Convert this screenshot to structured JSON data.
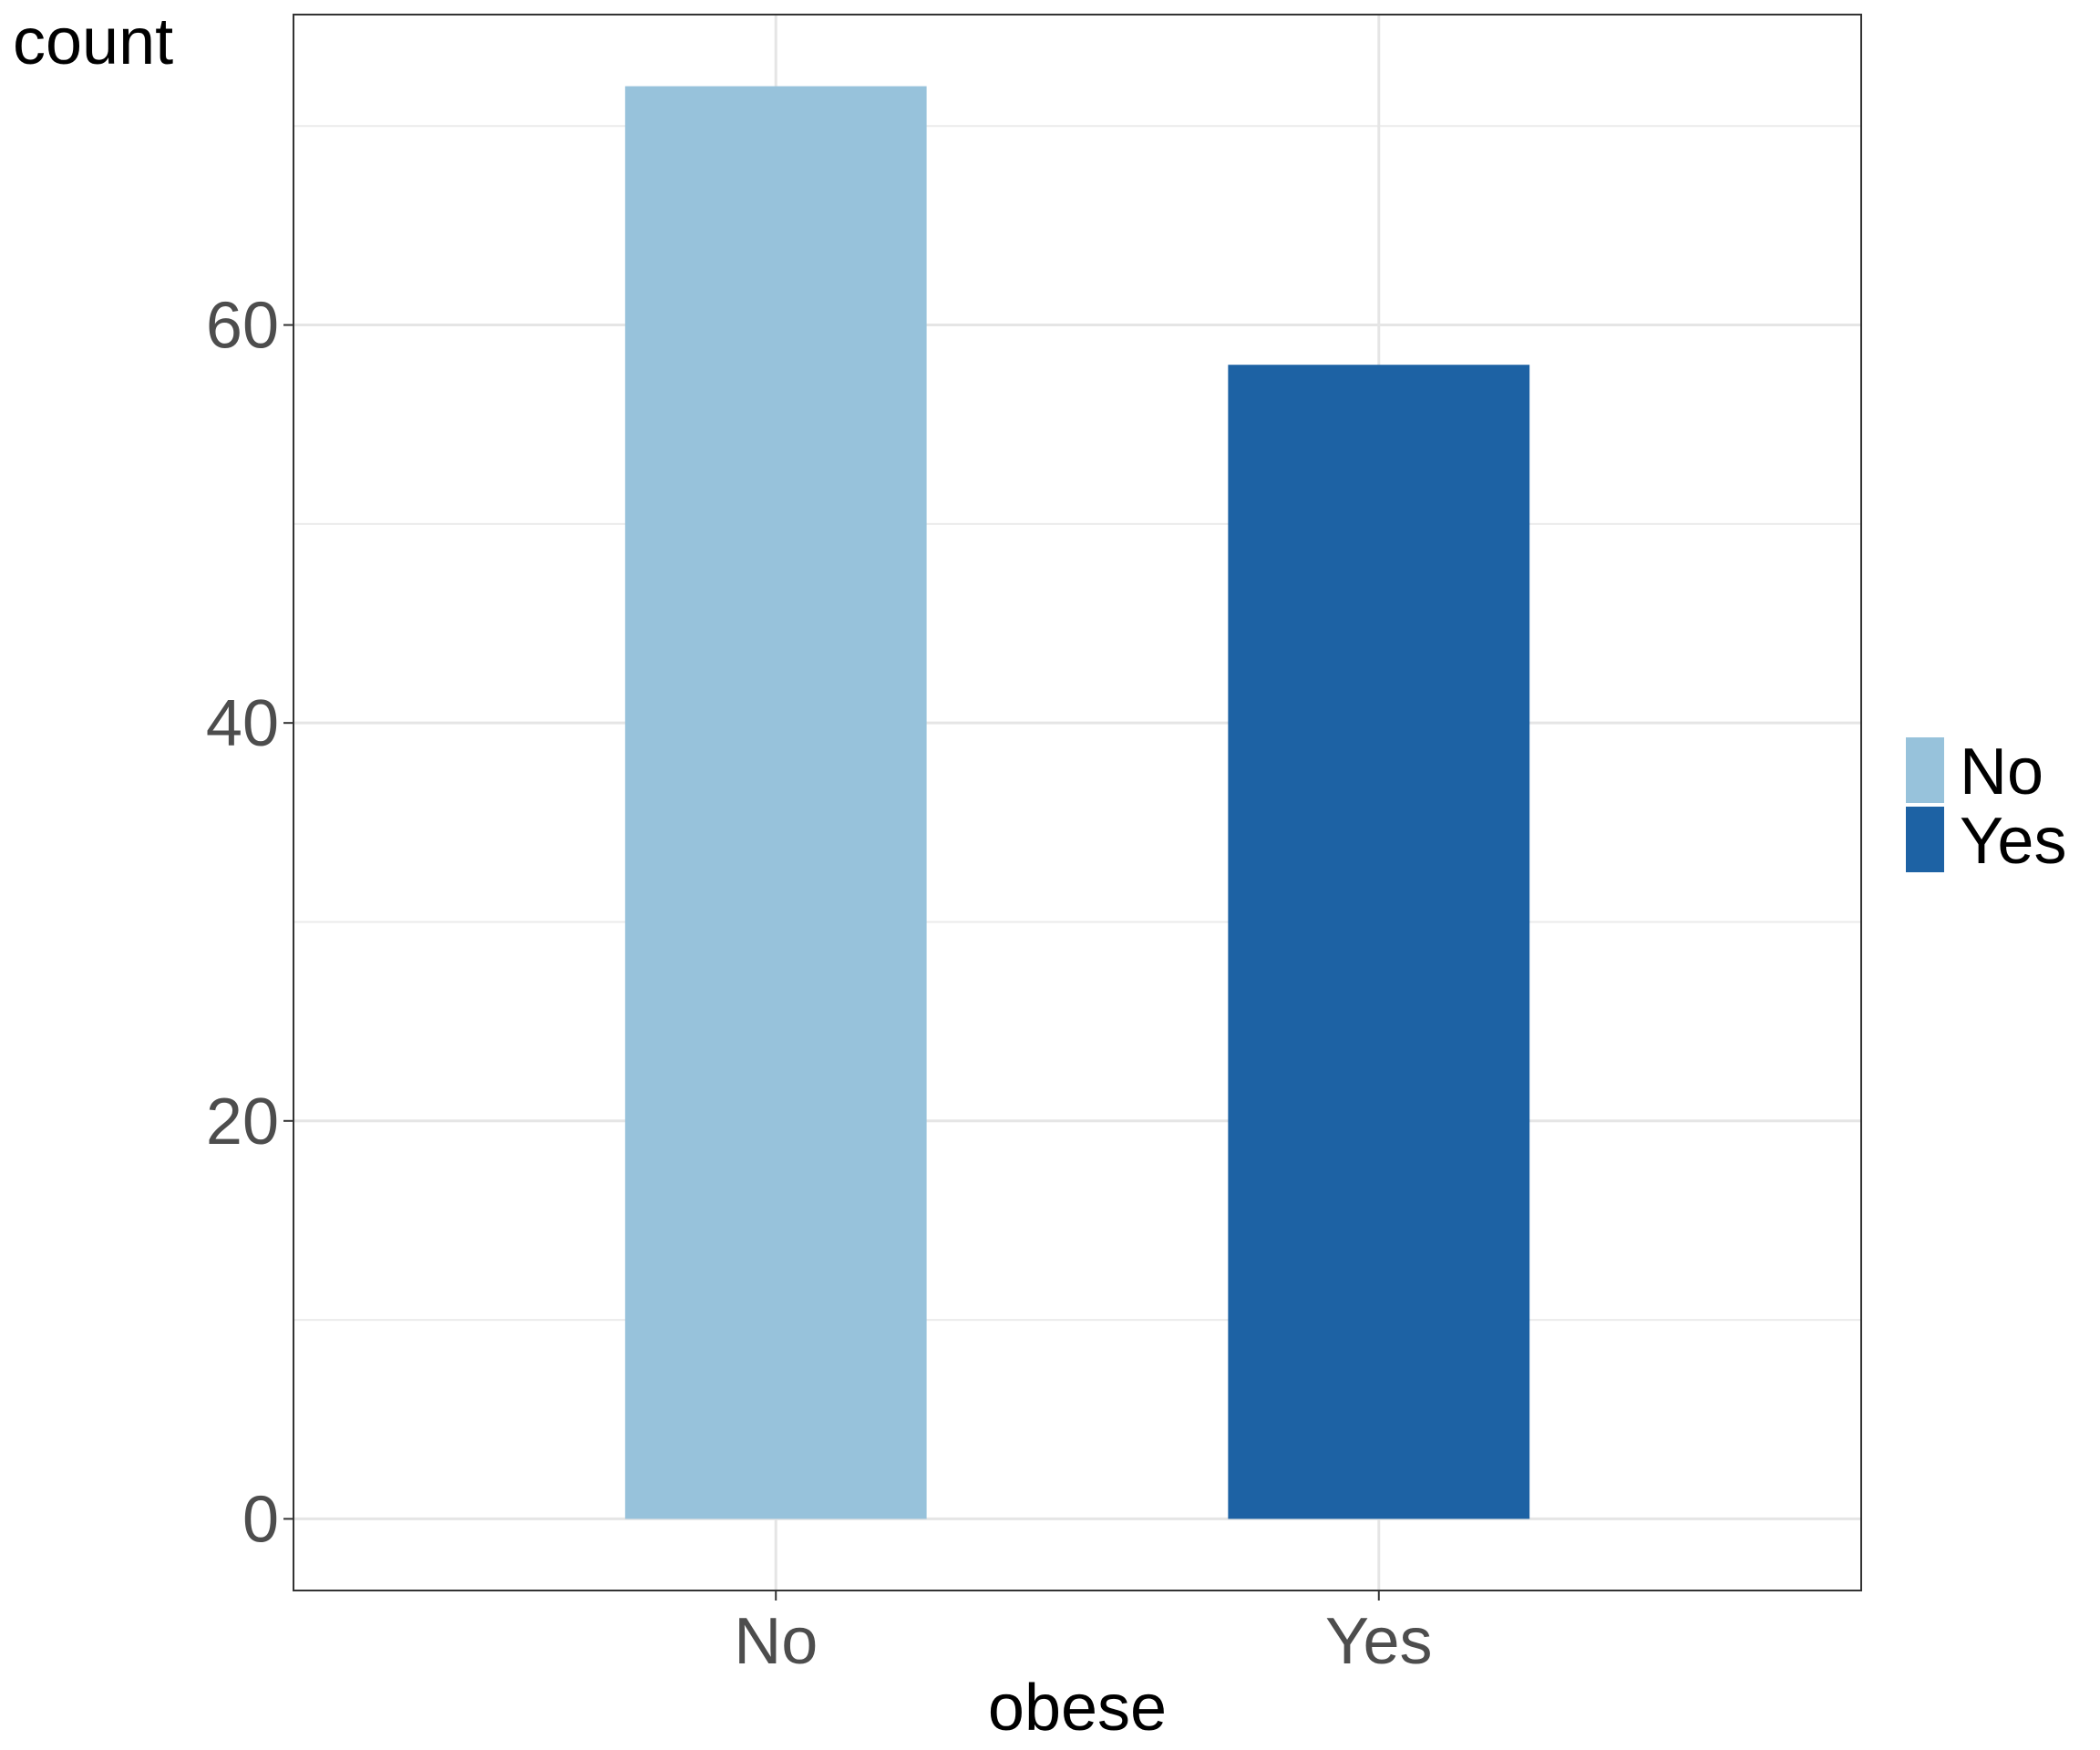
{
  "chart_data": {
    "type": "bar",
    "categories": [
      "No",
      "Yes"
    ],
    "values": [
      72,
      58
    ],
    "colors": [
      "#97c2db",
      "#1d62a4"
    ],
    "title": "",
    "xlabel": "obese",
    "ylabel": "count",
    "ylim": [
      -3.6,
      75.6
    ],
    "yticks": [
      0,
      20,
      40,
      60
    ],
    "grid": true,
    "legend": {
      "position": "right",
      "entries": [
        {
          "label": "No",
          "color": "#97c2db"
        },
        {
          "label": "Yes",
          "color": "#1d62a4"
        }
      ]
    }
  }
}
